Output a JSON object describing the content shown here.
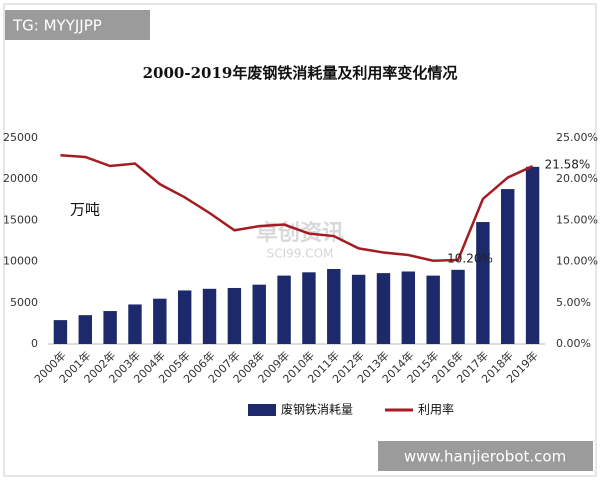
{
  "chart_data": {
    "type": "bar_line",
    "title": "2000-2019年废钢铁消耗量及利用率变化情况",
    "y_label": "万吨",
    "categories": [
      "2000年",
      "2001年",
      "2002年",
      "2003年",
      "2004年",
      "2005年",
      "2006年",
      "2007年",
      "2008年",
      "2009年",
      "2010年",
      "2011年",
      "2012年",
      "2013年",
      "2014年",
      "2015年",
      "2016年",
      "2017年",
      "2018年",
      "2019年"
    ],
    "series": [
      {
        "name": "废钢铁消耗量",
        "type": "bar",
        "color": "#1c2a6b",
        "values": [
          2900,
          3500,
          4000,
          4800,
          5500,
          6500,
          6700,
          6800,
          7200,
          8300,
          8700,
          9100,
          8400,
          8600,
          8800,
          8300,
          9000,
          14800,
          18800,
          21500
        ]
      },
      {
        "name": "利用率",
        "type": "line",
        "axis": "y2",
        "color": "#a31c22",
        "values": [
          22.9,
          22.7,
          21.6,
          21.9,
          19.4,
          17.8,
          15.9,
          13.8,
          14.3,
          14.5,
          13.4,
          13.1,
          11.6,
          11.1,
          10.8,
          10.1,
          10.2,
          17.6,
          20.2,
          21.58
        ],
        "value_labels": [
          null,
          null,
          null,
          null,
          null,
          null,
          null,
          null,
          null,
          null,
          null,
          null,
          null,
          null,
          null,
          null,
          "10.20%",
          null,
          null,
          "21.58%"
        ]
      }
    ],
    "ylim": [
      0,
      25000
    ],
    "yticks": [
      0,
      5000,
      10000,
      15000,
      20000,
      25000
    ],
    "y2lim": [
      0,
      25
    ],
    "y2ticks": [
      {
        "value": 0,
        "label": "0.00%"
      },
      {
        "value": 5,
        "label": "5.00%"
      },
      {
        "value": 10,
        "label": "10.00%"
      },
      {
        "value": 15,
        "label": "15.00%"
      },
      {
        "value": 20,
        "label": "20.00%"
      },
      {
        "value": 25,
        "label": "25.00%"
      }
    ],
    "grid": false,
    "legend": "bottom"
  },
  "overlays": {
    "top_left": "TG: MYYJJPP",
    "bottom_right": "www.hanjierobot.com",
    "center": [
      "卓创资讯",
      "SCI99.COM"
    ]
  }
}
